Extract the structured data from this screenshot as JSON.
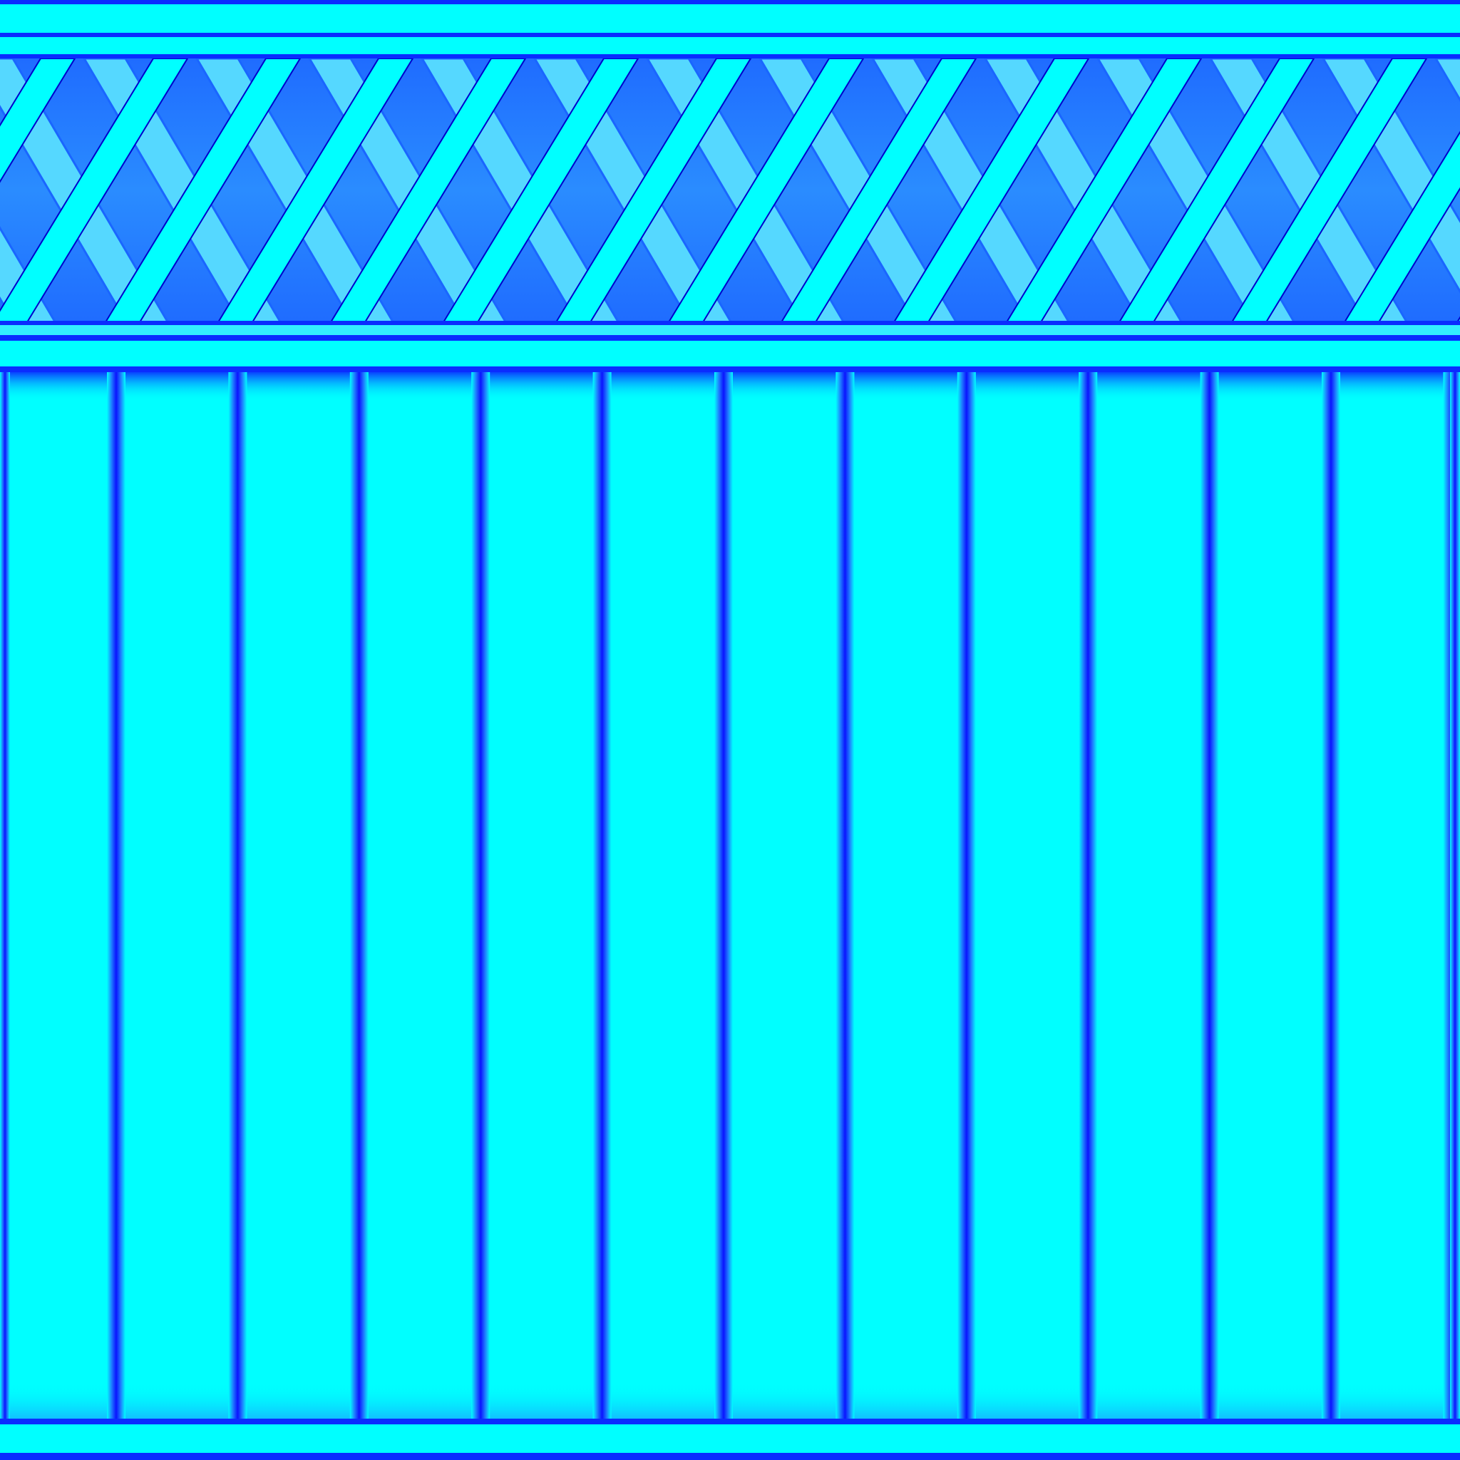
{
  "texture": {
    "description_visible_text": "",
    "palette": {
      "cyan": "#00ffff",
      "cyan_soft": "#33eeff",
      "blue_mid": "#1a66ff",
      "blue_deep": "#0a00ff",
      "blue_dark": "#0000cc",
      "slat_light": "#55d8ff"
    },
    "lattice": {
      "foreground_slat_count": 13,
      "background_slat_count": 14
    },
    "panels": {
      "board_count": 12
    }
  }
}
